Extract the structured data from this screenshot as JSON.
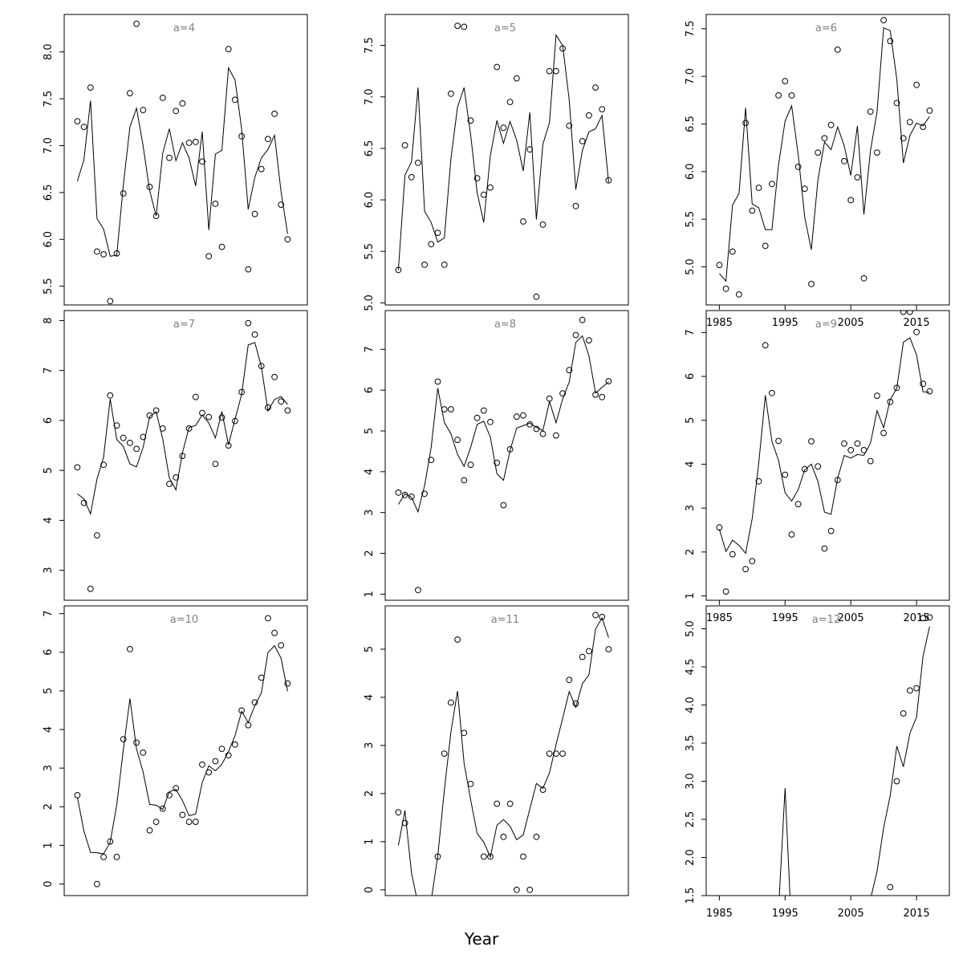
{
  "xlabel": "Year",
  "colors": {
    "panel_label": "#808080",
    "line": "#000000"
  },
  "chart_data": [
    {
      "type": "scatter",
      "label": "a=4",
      "xlim": [
        1983,
        2020
      ],
      "ylim": [
        5.3,
        8.4
      ],
      "yticks": [
        "5.5",
        "6.0",
        "6.5",
        "7.0",
        "7.5",
        "8.0"
      ],
      "xticks": [],
      "show_xticks": false,
      "x": [
        1985,
        1986,
        1987,
        1988,
        1989,
        1990,
        1991,
        1992,
        1993,
        1994,
        1995,
        1996,
        1997,
        1998,
        1999,
        2000,
        2001,
        2002,
        2003,
        2004,
        2005,
        2006,
        2007,
        2008,
        2009,
        2010,
        2011,
        2012,
        2013,
        2014,
        2015,
        2016,
        2017
      ],
      "points": [
        7.26,
        7.2,
        7.62,
        5.87,
        5.84,
        5.34,
        5.85,
        6.49,
        7.56,
        8.3,
        7.38,
        6.56,
        6.25,
        7.51,
        6.87,
        7.37,
        7.45,
        7.03,
        7.04,
        6.83,
        5.82,
        6.38,
        5.92,
        8.03,
        7.49,
        7.1,
        5.68,
        6.27,
        6.75,
        7.07,
        7.34,
        6.37,
        6.0
      ],
      "fit": [
        6.62,
        6.85,
        7.48,
        6.22,
        6.11,
        5.82,
        5.83,
        6.58,
        7.2,
        7.4,
        7.0,
        6.52,
        6.25,
        6.92,
        7.18,
        6.84,
        7.03,
        6.87,
        6.57,
        7.15,
        6.1,
        6.91,
        6.95,
        7.83,
        7.7,
        7.18,
        6.32,
        6.66,
        6.87,
        6.96,
        7.11,
        6.51,
        6.06
      ]
    },
    {
      "type": "scatter",
      "label": "a=7",
      "xlim": [
        1983,
        2020
      ],
      "ylim": [
        2.4,
        8.2
      ],
      "yticks": [
        "3",
        "4",
        "5",
        "6",
        "7",
        "8"
      ],
      "xticks": [],
      "show_xticks": false,
      "x": [
        1985,
        1986,
        1987,
        1988,
        1989,
        1990,
        1991,
        1992,
        1993,
        1994,
        1995,
        1996,
        1997,
        1998,
        1999,
        2000,
        2001,
        2002,
        2003,
        2004,
        2005,
        2006,
        2007,
        2008,
        2009,
        2010,
        2011,
        2012,
        2013,
        2014,
        2015,
        2016,
        2017
      ],
      "points": [
        5.06,
        4.35,
        2.63,
        3.7,
        5.11,
        6.5,
        5.9,
        5.65,
        5.55,
        5.43,
        5.67,
        6.1,
        6.2,
        5.84,
        4.73,
        4.86,
        5.29,
        5.84,
        6.47,
        6.15,
        6.07,
        5.13,
        6.06,
        5.5,
        5.99,
        6.57,
        7.95,
        7.72,
        7.09,
        6.26,
        6.87,
        6.38,
        6.2
      ],
      "fit": [
        4.53,
        4.43,
        4.13,
        4.83,
        5.27,
        6.43,
        5.62,
        5.48,
        5.13,
        5.07,
        5.46,
        6.08,
        6.17,
        5.63,
        4.85,
        4.61,
        5.36,
        5.86,
        5.9,
        6.11,
        5.95,
        5.65,
        6.18,
        5.51,
        6.03,
        6.52,
        7.51,
        7.56,
        7.08,
        6.19,
        6.42,
        6.48,
        6.32
      ]
    },
    {
      "type": "scatter",
      "label": "a=10",
      "xlim": [
        1983,
        2020
      ],
      "ylim": [
        -0.3,
        7.2
      ],
      "yticks": [
        "0",
        "1",
        "2",
        "3",
        "4",
        "5",
        "6",
        "7"
      ],
      "xticks": [],
      "show_xticks": false,
      "x": [
        1985,
        1986,
        1987,
        1988,
        1989,
        1990,
        1991,
        1992,
        1993,
        1994,
        1995,
        1996,
        1997,
        1998,
        1999,
        2000,
        2001,
        2002,
        2003,
        2004,
        2005,
        2006,
        2007,
        2008,
        2009,
        2010,
        2011,
        2012,
        2013,
        2014,
        2015,
        2016,
        2017
      ],
      "points": [
        2.3,
        null,
        null,
        0.0,
        0.7,
        1.1,
        0.7,
        3.75,
        6.08,
        3.66,
        3.4,
        1.39,
        1.61,
        1.95,
        2.3,
        2.48,
        1.79,
        1.61,
        1.61,
        3.09,
        2.89,
        3.18,
        3.5,
        3.33,
        3.61,
        4.49,
        4.11,
        4.7,
        5.34,
        6.88,
        6.5,
        6.18,
        5.19
      ],
      "fit": [
        2.25,
        1.37,
        0.82,
        0.81,
        0.78,
        1.08,
        2.05,
        3.48,
        4.8,
        3.5,
        2.9,
        2.06,
        2.04,
        1.93,
        2.39,
        2.45,
        2.16,
        1.77,
        1.81,
        2.63,
        3.06,
        2.93,
        3.1,
        3.43,
        3.84,
        4.47,
        4.18,
        4.62,
        4.95,
        5.99,
        6.17,
        5.85,
        4.99
      ]
    },
    {
      "type": "scatter",
      "label": "a=5",
      "xlim": [
        1983,
        2020
      ],
      "ylim": [
        4.98,
        7.8
      ],
      "yticks": [
        "5.0",
        "5.5",
        "6.0",
        "6.5",
        "7.0",
        "7.5"
      ],
      "xticks": [],
      "show_xticks": false,
      "x": [
        1985,
        1986,
        1987,
        1988,
        1989,
        1990,
        1991,
        1992,
        1993,
        1994,
        1995,
        1996,
        1997,
        1998,
        1999,
        2000,
        2001,
        2002,
        2003,
        2004,
        2005,
        2006,
        2007,
        2008,
        2009,
        2010,
        2011,
        2012,
        2013,
        2014,
        2015,
        2016,
        2017
      ],
      "points": [
        5.32,
        6.53,
        6.22,
        6.36,
        5.37,
        5.57,
        5.68,
        5.37,
        7.03,
        7.69,
        7.68,
        6.77,
        6.21,
        6.05,
        6.12,
        7.29,
        6.7,
        6.95,
        7.18,
        5.79,
        6.49,
        5.06,
        5.76,
        7.25,
        7.25,
        7.47,
        6.72,
        5.94,
        6.57,
        6.82,
        7.09,
        6.88,
        6.19
      ],
      "fit": [
        5.32,
        6.24,
        6.37,
        7.09,
        5.89,
        5.78,
        5.59,
        5.63,
        6.4,
        6.9,
        7.09,
        6.63,
        6.07,
        5.78,
        6.43,
        6.77,
        6.55,
        6.76,
        6.58,
        6.28,
        6.85,
        5.81,
        6.54,
        6.75,
        7.6,
        7.5,
        6.97,
        6.1,
        6.48,
        6.66,
        6.69,
        6.82,
        6.17
      ]
    },
    {
      "type": "scatter",
      "label": "a=8",
      "xlim": [
        1983,
        2020
      ],
      "ylim": [
        0.85,
        7.95
      ],
      "yticks": [
        "1",
        "2",
        "3",
        "4",
        "5",
        "6",
        "7"
      ],
      "xticks": [],
      "show_xticks": false,
      "x": [
        1985,
        1986,
        1987,
        1988,
        1989,
        1990,
        1991,
        1992,
        1993,
        1994,
        1995,
        1996,
        1997,
        1998,
        1999,
        2000,
        2001,
        2002,
        2003,
        2004,
        2005,
        2006,
        2007,
        2008,
        2009,
        2010,
        2011,
        2012,
        2013,
        2014,
        2015,
        2016,
        2017
      ],
      "points": [
        3.49,
        3.43,
        3.39,
        1.1,
        3.46,
        4.29,
        6.21,
        5.53,
        5.53,
        4.78,
        3.79,
        4.17,
        5.32,
        5.5,
        5.22,
        4.22,
        3.18,
        4.55,
        5.35,
        5.38,
        5.16,
        5.05,
        4.93,
        5.79,
        4.89,
        5.92,
        6.49,
        7.35,
        7.72,
        7.22,
        5.89,
        5.83,
        6.22
      ],
      "fit": [
        3.2,
        3.46,
        3.37,
        3.02,
        3.66,
        4.6,
        6.05,
        5.21,
        4.93,
        4.43,
        4.13,
        4.6,
        5.16,
        5.24,
        4.85,
        3.95,
        3.79,
        4.52,
        5.07,
        5.13,
        5.19,
        5.09,
        5.01,
        5.72,
        5.2,
        5.78,
        6.2,
        7.17,
        7.33,
        6.84,
        5.93,
        6.07,
        6.2
      ]
    },
    {
      "type": "scatter",
      "label": "a=11",
      "xlim": [
        1983,
        2020
      ],
      "ylim": [
        -0.12,
        5.9
      ],
      "yticks": [
        "0",
        "1",
        "2",
        "3",
        "4",
        "5"
      ],
      "xticks": [],
      "show_xticks": false,
      "x": [
        1985,
        1986,
        1987,
        1988,
        1989,
        1990,
        1991,
        1992,
        1993,
        1994,
        1995,
        1996,
        1997,
        1998,
        1999,
        2000,
        2001,
        2002,
        2003,
        2004,
        2005,
        2006,
        2007,
        2008,
        2009,
        2010,
        2011,
        2012,
        2013,
        2014,
        2015,
        2016,
        2017
      ],
      "points": [
        1.61,
        1.39,
        null,
        null,
        null,
        null,
        0.69,
        2.83,
        3.89,
        5.2,
        3.26,
        2.2,
        null,
        0.69,
        0.69,
        1.79,
        1.1,
        1.79,
        0.0,
        0.69,
        0.0,
        1.1,
        2.08,
        2.83,
        2.83,
        2.83,
        4.36,
        3.87,
        4.84,
        4.96,
        5.71,
        5.67,
        5.0
      ],
      "fit": [
        0.92,
        1.65,
        0.35,
        -0.3,
        -0.6,
        -0.22,
        0.7,
        2.07,
        3.28,
        4.13,
        2.63,
        1.87,
        1.17,
        0.99,
        0.68,
        1.34,
        1.46,
        1.32,
        1.04,
        1.14,
        1.68,
        2.21,
        2.11,
        2.43,
        3.02,
        3.56,
        4.12,
        3.79,
        4.28,
        4.47,
        5.42,
        5.65,
        5.24
      ]
    },
    {
      "type": "scatter",
      "label": "a=6",
      "xlim": [
        1983,
        2020
      ],
      "ylim": [
        4.6,
        7.65
      ],
      "yticks": [
        "5.0",
        "5.5",
        "6.0",
        "6.5",
        "7.0",
        "7.5"
      ],
      "xticks": [
        "1985",
        "1995",
        "2005",
        "2015"
      ],
      "show_xticks": true,
      "x": [
        1985,
        1986,
        1987,
        1988,
        1989,
        1990,
        1991,
        1992,
        1993,
        1994,
        1995,
        1996,
        1997,
        1998,
        1999,
        2000,
        2001,
        2002,
        2003,
        2004,
        2005,
        2006,
        2007,
        2008,
        2009,
        2010,
        2011,
        2012,
        2013,
        2014,
        2015,
        2016,
        2017
      ],
      "points": [
        5.02,
        4.77,
        5.16,
        4.71,
        6.51,
        5.59,
        5.83,
        5.22,
        5.87,
        6.8,
        6.95,
        6.8,
        6.05,
        5.82,
        4.82,
        6.2,
        6.35,
        6.49,
        7.28,
        6.11,
        5.7,
        5.94,
        4.88,
        6.63,
        6.2,
        7.59,
        7.37,
        6.72,
        6.35,
        6.52,
        6.91,
        6.47,
        6.64
      ],
      "fit": [
        4.93,
        4.85,
        5.65,
        5.77,
        6.67,
        5.66,
        5.62,
        5.39,
        5.39,
        6.07,
        6.53,
        6.69,
        6.18,
        5.52,
        5.18,
        5.91,
        6.31,
        6.23,
        6.47,
        6.27,
        5.96,
        6.48,
        5.55,
        6.22,
        6.63,
        7.51,
        7.48,
        6.97,
        6.09,
        6.38,
        6.51,
        6.48,
        6.58
      ]
    },
    {
      "type": "scatter",
      "label": "a=9",
      "xlim": [
        1983,
        2020
      ],
      "ylim": [
        0.9,
        7.5
      ],
      "yticks": [
        "1",
        "2",
        "3",
        "4",
        "5",
        "6",
        "7"
      ],
      "xticks": [
        "1985",
        "1995",
        "2005",
        "2015"
      ],
      "show_xticks": true,
      "x": [
        1985,
        1986,
        1987,
        1988,
        1989,
        1990,
        1991,
        1992,
        1993,
        1994,
        1995,
        1996,
        1997,
        1998,
        1999,
        2000,
        2001,
        2002,
        2003,
        2004,
        2005,
        2006,
        2007,
        2008,
        2009,
        2010,
        2011,
        2012,
        2013,
        2014,
        2015,
        2016,
        2017
      ],
      "points": [
        2.56,
        1.1,
        1.95,
        null,
        1.61,
        1.79,
        3.61,
        6.71,
        5.62,
        4.53,
        3.76,
        2.4,
        3.09,
        3.89,
        4.52,
        3.95,
        2.08,
        2.48,
        3.64,
        4.47,
        4.32,
        4.47,
        4.32,
        4.07,
        5.56,
        4.71,
        5.42,
        5.74,
        7.47,
        7.47,
        7.01,
        5.83,
        5.66
      ],
      "fit": [
        2.52,
        2.01,
        2.27,
        2.15,
        1.97,
        2.76,
        4.03,
        5.57,
        4.52,
        4.09,
        3.35,
        3.16,
        3.42,
        3.87,
        4.0,
        3.61,
        2.91,
        2.86,
        3.68,
        4.2,
        4.14,
        4.22,
        4.2,
        4.48,
        5.22,
        4.83,
        5.47,
        5.73,
        6.78,
        6.88,
        6.49,
        5.65,
        5.64
      ]
    },
    {
      "type": "scatter",
      "label": "a=12",
      "xlim": [
        1983,
        2020
      ],
      "ylim": [
        1.5,
        5.3
      ],
      "yticks": [
        "1.5",
        "2.0",
        "2.5",
        "3.0",
        "3.5",
        "4.0",
        "4.5",
        "5.0"
      ],
      "xticks": [
        "1985",
        "1995",
        "2005",
        "2015"
      ],
      "show_xticks": true,
      "x": [
        1985,
        1986,
        1987,
        1988,
        1989,
        1990,
        1991,
        1992,
        1993,
        1994,
        1995,
        1996,
        1997,
        1998,
        1999,
        2000,
        2001,
        2002,
        2003,
        2004,
        2005,
        2006,
        2007,
        2008,
        2009,
        2010,
        2011,
        2012,
        2013,
        2014,
        2015,
        2016,
        2017
      ],
      "points": [
        null,
        null,
        null,
        null,
        null,
        null,
        null,
        null,
        null,
        null,
        null,
        null,
        null,
        null,
        null,
        null,
        null,
        null,
        null,
        null,
        null,
        null,
        null,
        null,
        null,
        null,
        1.61,
        3.0,
        3.89,
        4.19,
        4.22,
        5.14,
        5.15
      ],
      "fit": [
        null,
        null,
        null,
        null,
        null,
        null,
        null,
        null,
        0.9,
        1.3,
        2.91,
        1.0,
        null,
        null,
        null,
        null,
        null,
        null,
        null,
        null,
        null,
        null,
        1.25,
        1.45,
        1.82,
        2.39,
        2.81,
        3.46,
        3.19,
        3.63,
        3.84,
        4.64,
        5.03
      ]
    }
  ]
}
